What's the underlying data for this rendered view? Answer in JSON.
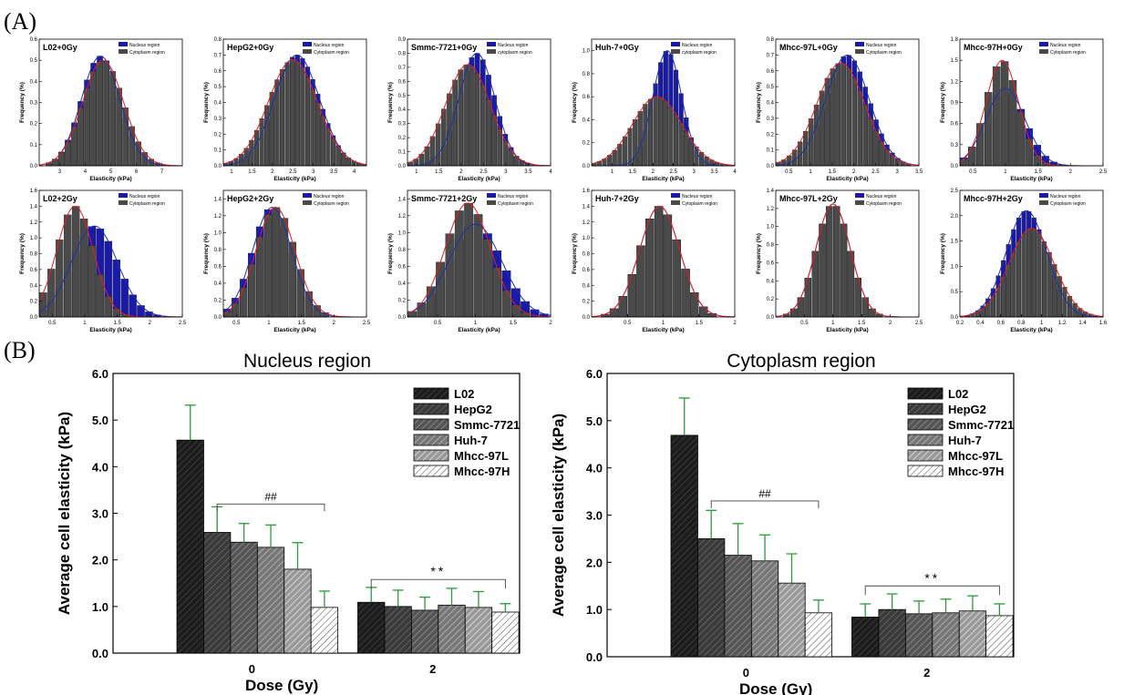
{
  "panel_labels": [
    "(A)",
    "(B)"
  ],
  "histogram_common": {
    "ylabel": "Frequency (%)",
    "xlabel": "Elasticity (kPa)",
    "legend_nucleus": "Nucleus region",
    "legend_cytoplasm": "Cytoplasm region",
    "colors": {
      "nucleus": "#1a1aa8",
      "cytoplasm": "#4a4a4a",
      "nucleus_fit": "#1f2fa8",
      "cytoplasm_fit": "#e02020"
    }
  },
  "histograms": [
    {
      "title": "L02+0Gy",
      "legend_cytoplasm": "Cytoplasm region",
      "xlim": [
        2.2,
        7.8
      ],
      "ylim": [
        0,
        0.6
      ],
      "xticks": [
        3,
        4,
        5,
        6,
        7
      ],
      "yticks": [
        0.0,
        0.1,
        0.2,
        0.3,
        0.4,
        0.5,
        0.6
      ],
      "nucleus": {
        "mu": 4.6,
        "sd": 0.75,
        "peak": 0.52
      },
      "cytoplasm": {
        "mu": 4.7,
        "sd": 0.8,
        "peak": 0.5
      }
    },
    {
      "title": "HepG2+0Gy",
      "legend_cytoplasm": "Cytoplasm region",
      "xlim": [
        0.8,
        4.3
      ],
      "ylim": [
        0,
        0.8
      ],
      "xticks": [
        1.0,
        1.5,
        2.0,
        2.5,
        3.0,
        3.5,
        4.0
      ],
      "yticks": [
        0.0,
        0.1,
        0.2,
        0.3,
        0.4,
        0.5,
        0.6,
        0.7,
        0.8
      ],
      "nucleus": {
        "mu": 2.6,
        "sd": 0.55,
        "peak": 0.7
      },
      "cytoplasm": {
        "mu": 2.5,
        "sd": 0.6,
        "peak": 0.67
      }
    },
    {
      "title": "Smmc-7721+0Gy",
      "legend_cytoplasm": "cytoplasm region",
      "xlim": [
        0.8,
        4.0
      ],
      "ylim": [
        0,
        0.9
      ],
      "xticks": [
        1.0,
        1.5,
        2.0,
        2.5,
        3.0,
        3.5,
        4.0
      ],
      "yticks": [
        0.0,
        0.1,
        0.2,
        0.3,
        0.4,
        0.5,
        0.6,
        0.7,
        0.8,
        0.9
      ],
      "nucleus": {
        "mu": 2.35,
        "sd": 0.4,
        "peak": 0.8
      },
      "cytoplasm": {
        "mu": 2.15,
        "sd": 0.5,
        "peak": 0.72
      }
    },
    {
      "title": "Huh-7+0Gy",
      "legend_cytoplasm": "cytoplasm region",
      "xlim": [
        0.5,
        4.0
      ],
      "ylim": [
        0,
        1.1
      ],
      "xticks": [
        1.0,
        1.5,
        2.0,
        2.5,
        3.0,
        3.5,
        4.0
      ],
      "yticks": [
        0.0,
        0.2,
        0.4,
        0.6,
        0.8,
        1.0
      ],
      "nucleus": {
        "mu": 2.35,
        "sd": 0.35,
        "peak": 1.0
      },
      "cytoplasm": {
        "mu": 2.1,
        "sd": 0.6,
        "peak": 0.6
      }
    },
    {
      "title": "Mhcc-97L+0Gy",
      "legend_cytoplasm": "Cytoplasm region",
      "xlim": [
        0.2,
        3.5
      ],
      "ylim": [
        0,
        0.8
      ],
      "xticks": [
        0.5,
        1.0,
        1.5,
        2.0,
        2.5,
        3.0,
        3.5
      ],
      "yticks": [
        0.0,
        0.1,
        0.2,
        0.3,
        0.4,
        0.5,
        0.6,
        0.7,
        0.8
      ],
      "nucleus": {
        "mu": 1.85,
        "sd": 0.5,
        "peak": 0.7
      },
      "cytoplasm": {
        "mu": 1.7,
        "sd": 0.55,
        "peak": 0.65
      }
    },
    {
      "title": "Mhcc-97H+0Gy",
      "legend_cytoplasm": "Cytoplasm region",
      "xlim": [
        0.3,
        2.5
      ],
      "ylim": [
        0,
        1.8
      ],
      "xticks": [
        0.5,
        1.0,
        1.5,
        2.0,
        2.5
      ],
      "yticks": [
        0.0,
        0.3,
        0.6,
        0.9,
        1.2,
        1.5,
        1.8
      ],
      "nucleus": {
        "mu": 1.0,
        "sd": 0.3,
        "peak": 1.1
      },
      "cytoplasm": {
        "mu": 0.95,
        "sd": 0.25,
        "peak": 1.5
      }
    },
    {
      "title": "L02+2Gy",
      "legend_cytoplasm": "Cytoplasm region",
      "xlim": [
        0.3,
        2.5
      ],
      "ylim": [
        0,
        1.6
      ],
      "xticks": [
        0.5,
        1.0,
        1.5,
        2.0,
        2.5
      ],
      "yticks": [
        0.0,
        0.2,
        0.4,
        0.6,
        0.8,
        1.0,
        1.2,
        1.4,
        1.6
      ],
      "nucleus": {
        "mu": 1.15,
        "sd": 0.35,
        "peak": 1.15
      },
      "cytoplasm": {
        "mu": 0.85,
        "sd": 0.28,
        "peak": 1.4
      }
    },
    {
      "title": "HepG2+2Gy",
      "legend_cytoplasm": "Cytoplasm region",
      "xlim": [
        0.3,
        2.5
      ],
      "ylim": [
        0,
        1.5
      ],
      "xticks": [
        0.5,
        1.0,
        1.5,
        2.0,
        2.5
      ],
      "yticks": [
        0.0,
        0.2,
        0.4,
        0.6,
        0.8,
        1.0,
        1.2,
        1.4
      ],
      "nucleus": {
        "mu": 1.05,
        "sd": 0.3,
        "peak": 1.3
      },
      "cytoplasm": {
        "mu": 1.1,
        "sd": 0.3,
        "peak": 1.3
      }
    },
    {
      "title": "Smmc-7721+2Gy",
      "legend_cytoplasm": "Cytoplasm region",
      "xlim": [
        0.1,
        2.0
      ],
      "ylim": [
        0,
        1.5
      ],
      "xticks": [
        0.5,
        1.0,
        1.5,
        2.0
      ],
      "yticks": [
        0.0,
        0.2,
        0.4,
        0.6,
        0.8,
        1.0,
        1.2,
        1.4
      ],
      "nucleus": {
        "mu": 1.0,
        "sd": 0.35,
        "peak": 1.1
      },
      "cytoplasm": {
        "mu": 0.9,
        "sd": 0.3,
        "peak": 1.35
      }
    },
    {
      "title": "Huh-7+2Gy",
      "legend_cytoplasm": "Cytoplasm region",
      "xlim": [
        0.0,
        2.0
      ],
      "ylim": [
        0,
        1.6
      ],
      "xticks": [
        0.5,
        1.0,
        1.5,
        2.0
      ],
      "yticks": [
        0.0,
        0.2,
        0.4,
        0.6,
        0.8,
        1.0,
        1.2,
        1.4,
        1.6
      ],
      "nucleus": {
        "mu": 0.95,
        "sd": 0.28,
        "peak": 1.4
      },
      "cytoplasm": {
        "mu": 0.95,
        "sd": 0.28,
        "peak": 1.4
      }
    },
    {
      "title": "Mhcc-97L+2Gy",
      "legend_cytoplasm": "Cytoplasm region",
      "xlim": [
        0.0,
        2.5
      ],
      "ylim": [
        0,
        1.4
      ],
      "xticks": [
        0.5,
        1.0,
        1.5,
        2.0,
        2.5
      ],
      "yticks": [
        0.0,
        0.2,
        0.4,
        0.6,
        0.8,
        1.0,
        1.2,
        1.4
      ],
      "nucleus": {
        "mu": 1.0,
        "sd": 0.3,
        "peak": 1.25
      },
      "cytoplasm": {
        "mu": 1.0,
        "sd": 0.3,
        "peak": 1.25
      }
    },
    {
      "title": "Mhcc-97H+2Gy",
      "legend_cytoplasm": "Cytoplasm region",
      "xlim": [
        0.2,
        1.6
      ],
      "ylim": [
        0,
        2.5
      ],
      "xticks": [
        0.2,
        0.4,
        0.6,
        0.8,
        1.0,
        1.2,
        1.4,
        1.6
      ],
      "yticks": [
        0.0,
        0.5,
        1.0,
        1.5,
        2.0,
        2.5
      ],
      "nucleus": {
        "mu": 0.85,
        "sd": 0.2,
        "peak": 2.1
      },
      "cytoplasm": {
        "mu": 0.9,
        "sd": 0.22,
        "peak": 1.75
      }
    }
  ],
  "chart_data": [
    {
      "type": "bar",
      "title": "Nucleus region",
      "xlabel": "Dose (Gy)",
      "ylabel": "Average cell elasticity (kPa)",
      "categories": [
        "0",
        "2"
      ],
      "ylim": [
        0,
        6
      ],
      "yticks": [
        "0.0",
        "1.0",
        "2.0",
        "3.0",
        "4.0",
        "5.0",
        "6.0"
      ],
      "legend_position": "top-right",
      "series": [
        {
          "name": "L02",
          "values": [
            4.57,
            1.09
          ],
          "errors": [
            0.75,
            0.32
          ]
        },
        {
          "name": "HepG2",
          "values": [
            2.59,
            1.0
          ],
          "errors": [
            0.55,
            0.35
          ]
        },
        {
          "name": "Smmc-7721",
          "values": [
            2.38,
            0.92
          ],
          "errors": [
            0.4,
            0.28
          ]
        },
        {
          "name": "Huh-7",
          "values": [
            2.27,
            1.03
          ],
          "errors": [
            0.48,
            0.36
          ]
        },
        {
          "name": "Mhcc-97L",
          "values": [
            1.8,
            0.98
          ],
          "errors": [
            0.57,
            0.34
          ]
        },
        {
          "name": "Mhcc-97H",
          "values": [
            0.98,
            0.88
          ],
          "errors": [
            0.35,
            0.18
          ]
        }
      ],
      "annotations": [
        "##",
        "**"
      ]
    },
    {
      "type": "bar",
      "title": "Cytoplasm region",
      "xlabel": "Dose (Gy)",
      "ylabel": "Average cell elasticity (kPa)",
      "categories": [
        "0",
        "2"
      ],
      "ylim": [
        0,
        6
      ],
      "yticks": [
        "0.0",
        "1.0",
        "2.0",
        "3.0",
        "4.0",
        "5.0",
        "6.0"
      ],
      "legend_position": "top-right",
      "series": [
        {
          "name": "L02",
          "values": [
            4.69,
            0.84
          ],
          "errors": [
            0.79,
            0.28
          ]
        },
        {
          "name": "HepG2",
          "values": [
            2.5,
            1.0
          ],
          "errors": [
            0.6,
            0.33
          ]
        },
        {
          "name": "Smmc-7721",
          "values": [
            2.15,
            0.91
          ],
          "errors": [
            0.67,
            0.27
          ]
        },
        {
          "name": "Huh-7",
          "values": [
            2.03,
            0.93
          ],
          "errors": [
            0.55,
            0.29
          ]
        },
        {
          "name": "Mhcc-97L",
          "values": [
            1.56,
            0.97
          ],
          "errors": [
            0.62,
            0.32
          ]
        },
        {
          "name": "Mhcc-97H",
          "values": [
            0.93,
            0.87
          ],
          "errors": [
            0.27,
            0.25
          ]
        }
      ],
      "annotations": [
        "##",
        "**"
      ]
    }
  ]
}
